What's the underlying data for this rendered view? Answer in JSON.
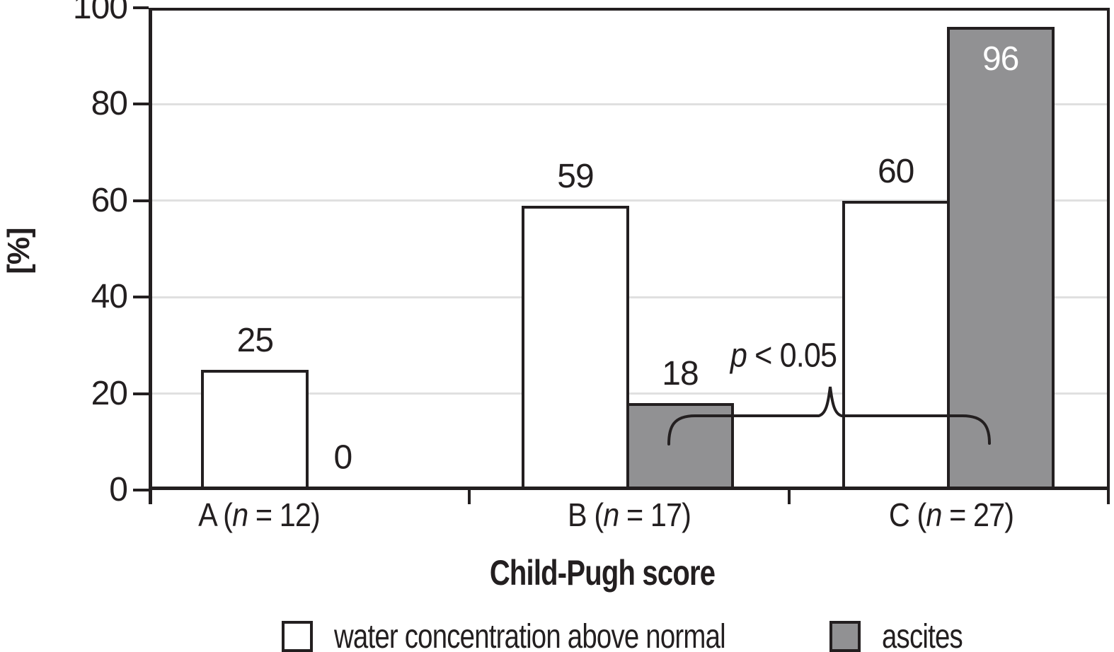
{
  "chart_data": {
    "type": "bar",
    "title": "",
    "xlabel": "Child-Pugh score",
    "ylabel": "[%]",
    "categories": [
      "A (n = 12)",
      "B (n = 17)",
      "C (n = 27)"
    ],
    "series": [
      {
        "name": "water concentration above normal",
        "color": "#ffffff",
        "values": [
          25,
          59,
          60
        ]
      },
      {
        "name": "ascites",
        "color": "#919193",
        "values": [
          0,
          18,
          96
        ]
      }
    ],
    "value_labels": [
      [
        "25",
        "59",
        "60"
      ],
      [
        "0",
        "18",
        "96"
      ]
    ],
    "yticks": [
      0,
      20,
      40,
      60,
      80,
      100
    ],
    "ylim": [
      0,
      100
    ],
    "grid": true,
    "legend_position": "bottom",
    "annotation": {
      "text": "p < 0.05",
      "connects": [
        "B ascites bar",
        "C ascites bar"
      ]
    },
    "colors": {
      "axis": "#231f20",
      "grid": "#e0e0e0",
      "bar_border": "#231f20",
      "inside_label": "#ffffff",
      "text": "#231f20"
    }
  }
}
